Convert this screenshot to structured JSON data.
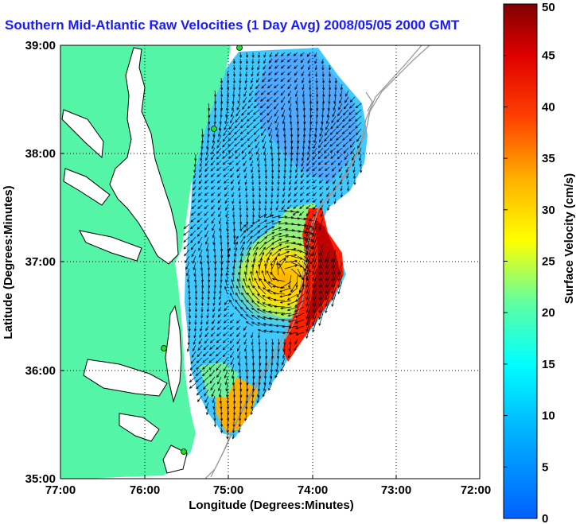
{
  "title": "Southern Mid-Atlantic Raw Velocities (1 Day Avg) 2008/05/05 2000 GMT",
  "xlabel": "Longitude (Degrees:Minutes)",
  "ylabel": "Latitude (Degrees:Minutes)",
  "x_ticks": [
    "77:00",
    "76:00",
    "75:00",
    "74:00",
    "73:00",
    "72:00"
  ],
  "y_ticks": [
    "39:00",
    "38:00",
    "37:00",
    "36:00",
    "35:00"
  ],
  "colorbar": {
    "label": "Surface Velocity (cm/s)",
    "ticks": [
      "0",
      "5",
      "10",
      "15",
      "20",
      "25",
      "30",
      "35",
      "40",
      "45",
      "50"
    ],
    "range": [
      0,
      50
    ]
  },
  "x_range_deg": [
    -77,
    -72
  ],
  "y_range_deg": [
    35,
    39
  ],
  "colors": {
    "land": "#55f5a8",
    "title": "#1a1aff",
    "station": "#22dd22",
    "bathymetry": "#999999"
  }
}
